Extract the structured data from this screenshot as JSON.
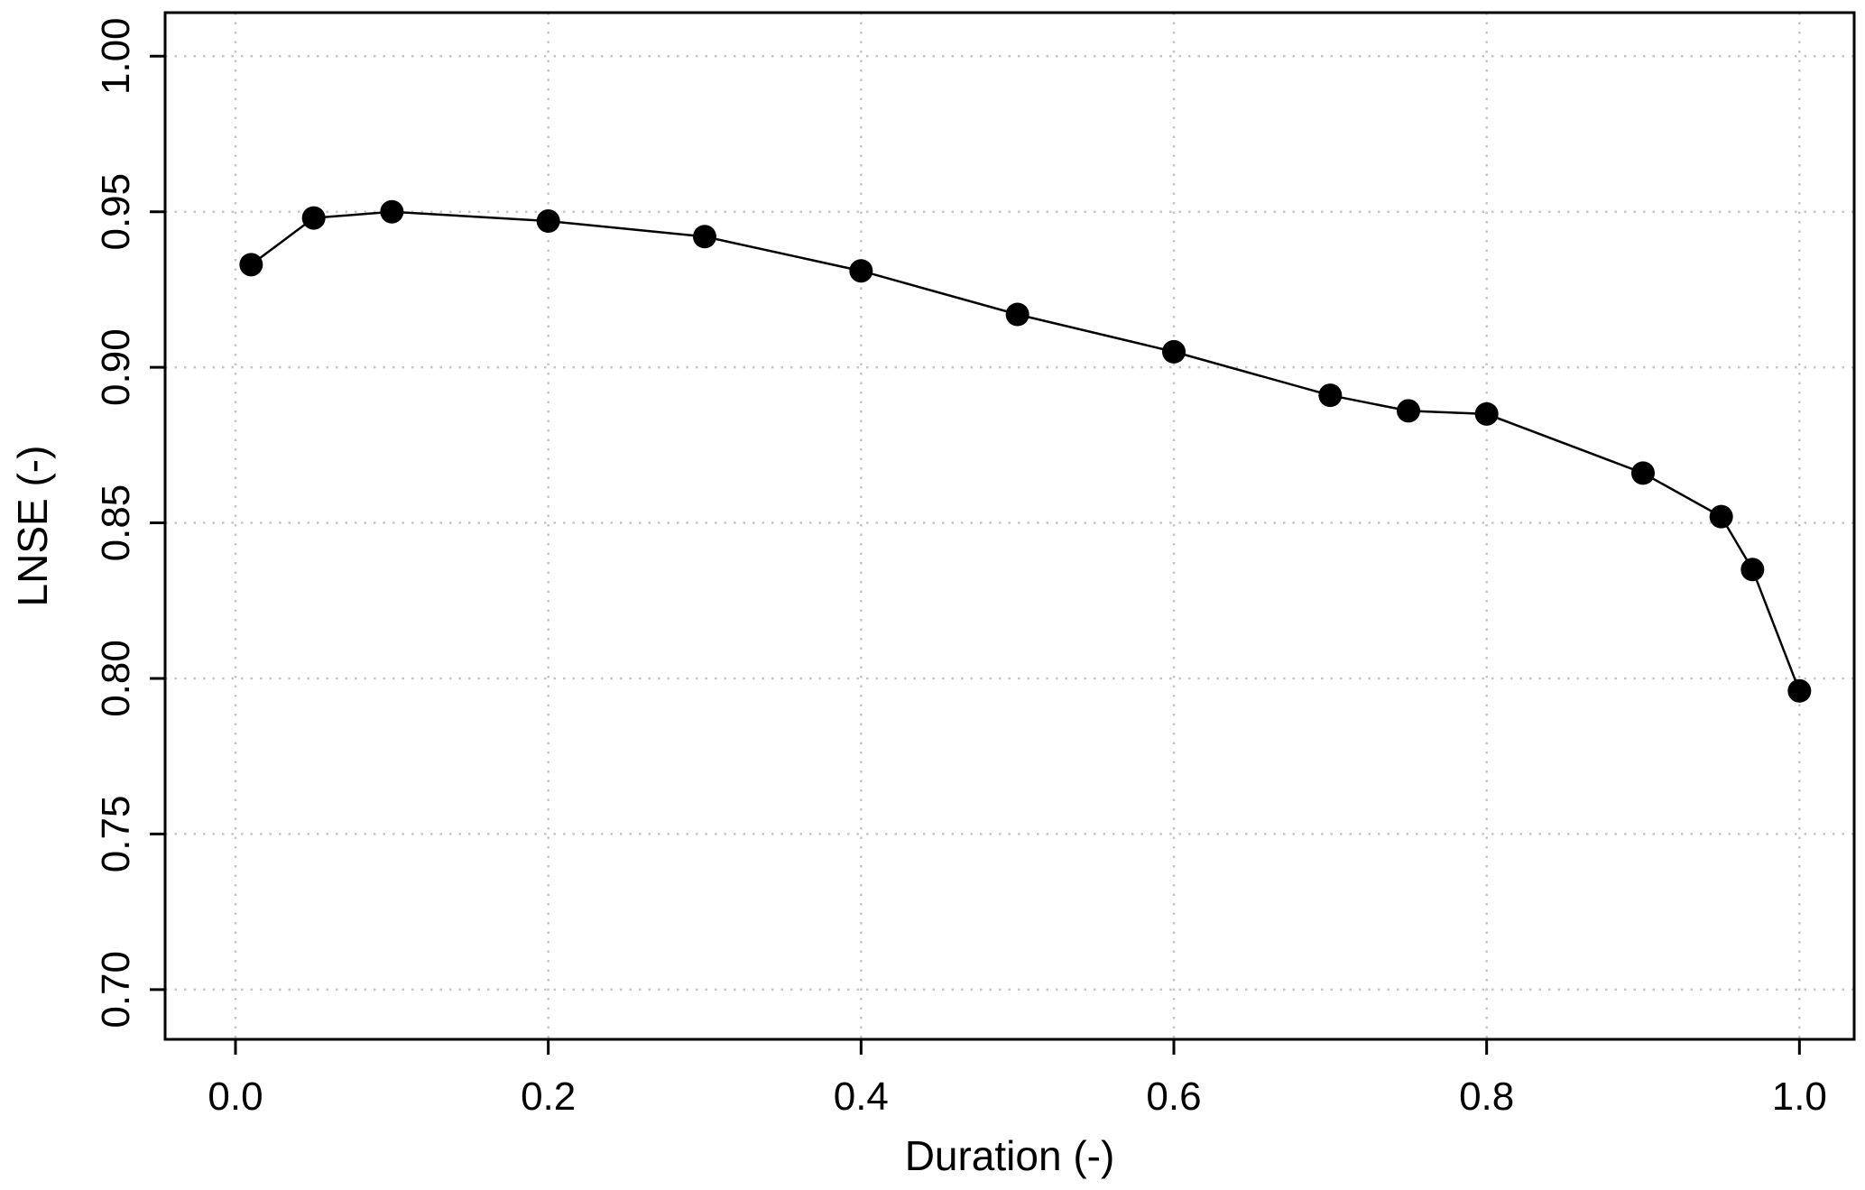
{
  "page": {
    "background": "#ffffff"
  },
  "chart_data": {
    "type": "line",
    "title": "",
    "xlabel": "Duration (-)",
    "ylabel": "LNSE (-)",
    "x": [
      0.01,
      0.05,
      0.1,
      0.2,
      0.3,
      0.4,
      0.5,
      0.6,
      0.7,
      0.75,
      0.8,
      0.9,
      0.95,
      0.97,
      1.0
    ],
    "series": [
      {
        "name": "LNSE",
        "values": [
          0.933,
          0.948,
          0.95,
          0.947,
          0.942,
          0.931,
          0.917,
          0.905,
          0.891,
          0.886,
          0.885,
          0.866,
          0.852,
          0.835,
          0.796
        ]
      }
    ],
    "xticks": [
      0.0,
      0.2,
      0.4,
      0.6,
      0.8,
      1.0
    ],
    "xtick_labels": [
      "0.0",
      "0.2",
      "0.4",
      "0.6",
      "0.8",
      "1.0"
    ],
    "yticks": [
      0.7,
      0.75,
      0.8,
      0.85,
      0.9,
      0.95,
      1.0
    ],
    "ytick_labels": [
      "0.70",
      "0.75",
      "0.80",
      "0.85",
      "0.90",
      "0.95",
      "1.00"
    ],
    "xlim": [
      -0.045,
      1.035
    ],
    "ylim": [
      0.684,
      1.014
    ],
    "grid": true,
    "grid_style": "dotted",
    "legend": null,
    "marker": "filled-circle",
    "marker_size": 13,
    "colors": {
      "line": "#000000",
      "marker": "#000000",
      "grid": "#c6c6c6",
      "box": "#000000",
      "text": "#000000",
      "background": "#ffffff"
    }
  }
}
